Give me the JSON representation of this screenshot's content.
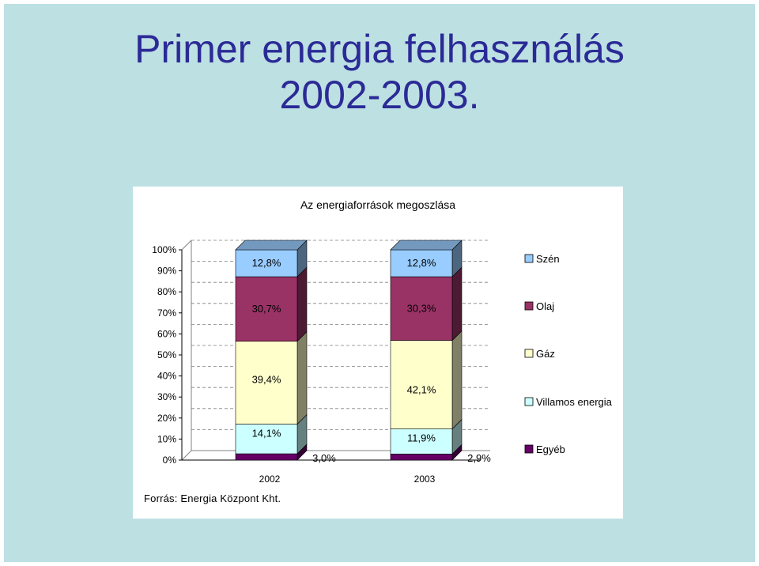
{
  "slide": {
    "title_line1": "Primer energia felhasználás",
    "title_line2": "2002-2003."
  },
  "source": "Forrás: Energia Központ Kht.",
  "colors": {
    "background": "#bde0e3",
    "title": "#2b2a96",
    "series": [
      "#660066",
      "#ccffff",
      "#ffffcc",
      "#993366",
      "#99ccff"
    ]
  },
  "chart_data": {
    "type": "bar",
    "stacked": true,
    "percent_stacked": true,
    "title": "Az energiaforrások megoszlása",
    "categories": [
      "2002",
      "2003"
    ],
    "y_ticks": [
      "0%",
      "10%",
      "20%",
      "30%",
      "40%",
      "50%",
      "60%",
      "70%",
      "80%",
      "90%",
      "100%"
    ],
    "ylim": [
      0,
      100
    ],
    "grid": true,
    "legend": "right",
    "series": [
      {
        "name": "Egyéb",
        "values": [
          3.0,
          2.9
        ],
        "labels": [
          "3,0%",
          "2,9%"
        ],
        "color": "#660066"
      },
      {
        "name": "Villamos energia",
        "values": [
          14.1,
          11.9
        ],
        "labels": [
          "14,1%",
          "11,9%"
        ],
        "color": "#ccffff"
      },
      {
        "name": "Gáz",
        "values": [
          39.4,
          42.1
        ],
        "labels": [
          "39,4%",
          "42,1%"
        ],
        "color": "#ffffcc"
      },
      {
        "name": "Olaj",
        "values": [
          30.7,
          30.3
        ],
        "labels": [
          "30,7%",
          "30,3%"
        ],
        "color": "#993366"
      },
      {
        "name": "Szén",
        "values": [
          12.8,
          12.8
        ],
        "labels": [
          "12,8%",
          "12,8%"
        ],
        "color": "#99ccff"
      }
    ],
    "legend_order": [
      "Szén",
      "Olaj",
      "Gáz",
      "Villamos energia",
      "Egyéb"
    ]
  }
}
